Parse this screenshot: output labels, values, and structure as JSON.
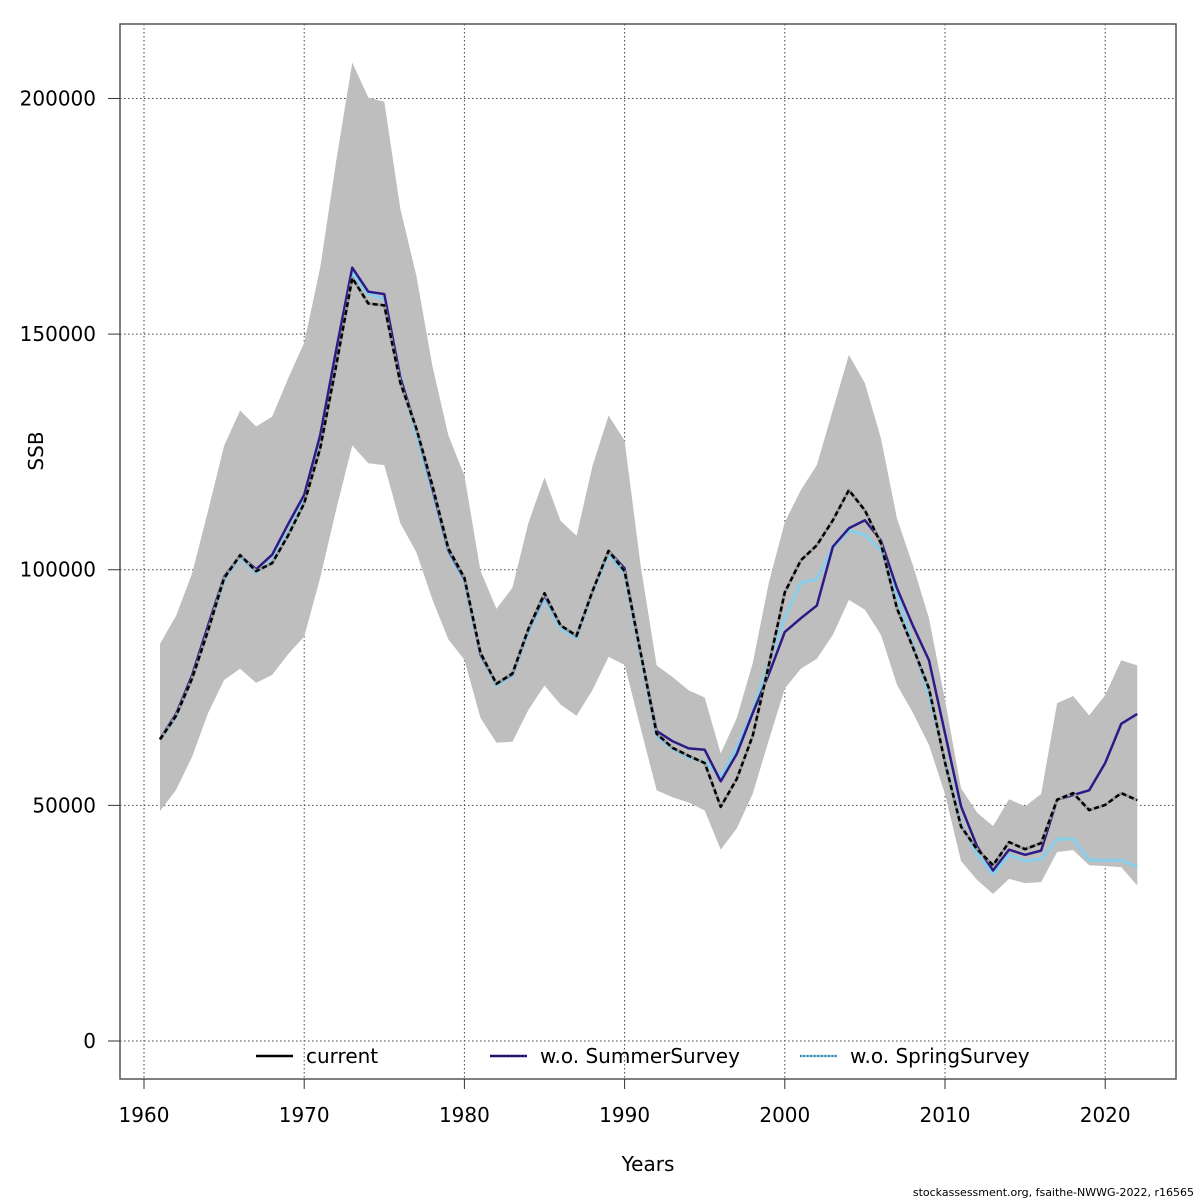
{
  "chart_data": {
    "type": "line",
    "title": "",
    "xlabel": "Years",
    "ylabel": "SSB",
    "xlim": [
      1958.5,
      2024.5
    ],
    "ylim": [
      -8000,
      215000
    ],
    "x_ticks": [
      1960,
      1970,
      1980,
      1990,
      2000,
      2010,
      2020
    ],
    "y_ticks": [
      0,
      50000,
      100000,
      150000,
      200000
    ],
    "grid": true,
    "legend_position": "bottom-inside",
    "x": [
      1961,
      1962,
      1963,
      1964,
      1965,
      1966,
      1967,
      1968,
      1969,
      1970,
      1971,
      1972,
      1973,
      1974,
      1975,
      1976,
      1977,
      1978,
      1979,
      1980,
      1981,
      1982,
      1983,
      1984,
      1985,
      1986,
      1987,
      1988,
      1989,
      1990,
      1991,
      1992,
      1993,
      1994,
      1995,
      1996,
      1997,
      1998,
      1999,
      2000,
      2001,
      2002,
      2003,
      2004,
      2005,
      2006,
      2007,
      2008,
      2009,
      2010,
      2011,
      2012,
      2013,
      2014,
      2015,
      2016,
      2017,
      2018,
      2019,
      2020,
      2021,
      2022
    ],
    "band": {
      "name": "confidence interval (current)",
      "upper": [
        84300,
        90200,
        99200,
        112500,
        126300,
        133800,
        130400,
        132500,
        140600,
        148200,
        164100,
        186800,
        207600,
        200200,
        199300,
        176600,
        162400,
        143300,
        128500,
        120000,
        99800,
        91700,
        96200,
        110000,
        119600,
        110400,
        107200,
        122100,
        132700,
        127400,
        100900,
        79700,
        77200,
        74400,
        72900,
        61000,
        68500,
        80200,
        97200,
        110100,
        116900,
        122200,
        133900,
        145600,
        139600,
        127900,
        110900,
        100900,
        89700,
        72300,
        53600,
        48500,
        45600,
        51300,
        49800,
        52400,
        71700,
        73200,
        69100,
        73400,
        80800,
        79700
      ],
      "lower": [
        48800,
        53300,
        60300,
        69600,
        76600,
        79000,
        76000,
        77700,
        82100,
        85800,
        98300,
        112800,
        126400,
        122600,
        122200,
        109900,
        103700,
        93700,
        85200,
        80900,
        68600,
        63300,
        63500,
        70300,
        75400,
        71400,
        69000,
        74500,
        81500,
        79800,
        66400,
        53200,
        51700,
        50600,
        48900,
        40600,
        45100,
        52500,
        63800,
        74800,
        79000,
        81100,
        86200,
        93600,
        91500,
        86200,
        75600,
        69600,
        62800,
        52400,
        38200,
        34200,
        31200,
        34400,
        33500,
        33700,
        40100,
        40500,
        37300,
        37100,
        36900,
        33000
      ]
    },
    "series": [
      {
        "name": "current",
        "color": "#000000",
        "style": "solid",
        "values": [
          64000,
          69000,
          76900,
          87100,
          98200,
          103100,
          99700,
          101400,
          107300,
          114100,
          125800,
          143400,
          161900,
          156500,
          156100,
          139700,
          130000,
          117900,
          104500,
          98300,
          82400,
          75800,
          78000,
          87500,
          95000,
          88200,
          86000,
          95500,
          104000,
          99700,
          82400,
          65200,
          62200,
          60500,
          59000,
          49700,
          55600,
          64800,
          79700,
          95200,
          102000,
          105200,
          110500,
          116900,
          112600,
          105600,
          91800,
          83500,
          74800,
          59100,
          45500,
          40700,
          37300,
          42200,
          40700,
          42000,
          51200,
          52600,
          49000,
          50100,
          52600,
          51100
        ]
      },
      {
        "name": "w.o. SummerSurvey",
        "color": "#2e1a87",
        "style": "solid",
        "values": [
          64100,
          69400,
          77600,
          88200,
          98500,
          103000,
          100100,
          103200,
          109700,
          115900,
          128600,
          146700,
          164100,
          159000,
          158500,
          140800,
          129900,
          117200,
          104100,
          98000,
          82000,
          75800,
          77800,
          87300,
          94600,
          88200,
          85900,
          95400,
          104000,
          100300,
          82500,
          65800,
          63600,
          62100,
          61800,
          55100,
          60900,
          69600,
          77800,
          86800,
          89700,
          92400,
          104900,
          108800,
          110500,
          106200,
          96100,
          88100,
          80800,
          65300,
          49800,
          41300,
          36200,
          40600,
          39500,
          40400,
          51200,
          52200,
          53200,
          59000,
          67300,
          69400
        ]
      },
      {
        "name": "w.o. SpringSurvey",
        "color": "#87ceeb",
        "style": "dotted",
        "values": [
          63900,
          68800,
          76800,
          86900,
          97800,
          102600,
          99300,
          101900,
          107900,
          114900,
          127400,
          145900,
          162900,
          158500,
          157500,
          141000,
          128700,
          116700,
          103700,
          97700,
          81900,
          75400,
          77600,
          86800,
          93900,
          87500,
          85500,
          95200,
          103200,
          99100,
          81600,
          64600,
          61900,
          60100,
          59300,
          56200,
          62200,
          70000,
          80300,
          89900,
          97300,
          98000,
          104700,
          108300,
          107400,
          104100,
          94600,
          84200,
          73200,
          59600,
          46100,
          39600,
          35400,
          39500,
          38200,
          38600,
          42800,
          42900,
          38400,
          38300,
          38400,
          36900
        ]
      }
    ],
    "legend": [
      {
        "label": "current",
        "color": "#000000",
        "style": "solid"
      },
      {
        "label": "w.o. SummerSurvey",
        "color": "#2e1a87",
        "style": "solid"
      },
      {
        "label": "w.o. SpringSurvey",
        "color": "#87ceeb",
        "style": "dotted"
      }
    ]
  },
  "footer": "stockassessment.org, fsaithe-NWWG-2022, r16565"
}
